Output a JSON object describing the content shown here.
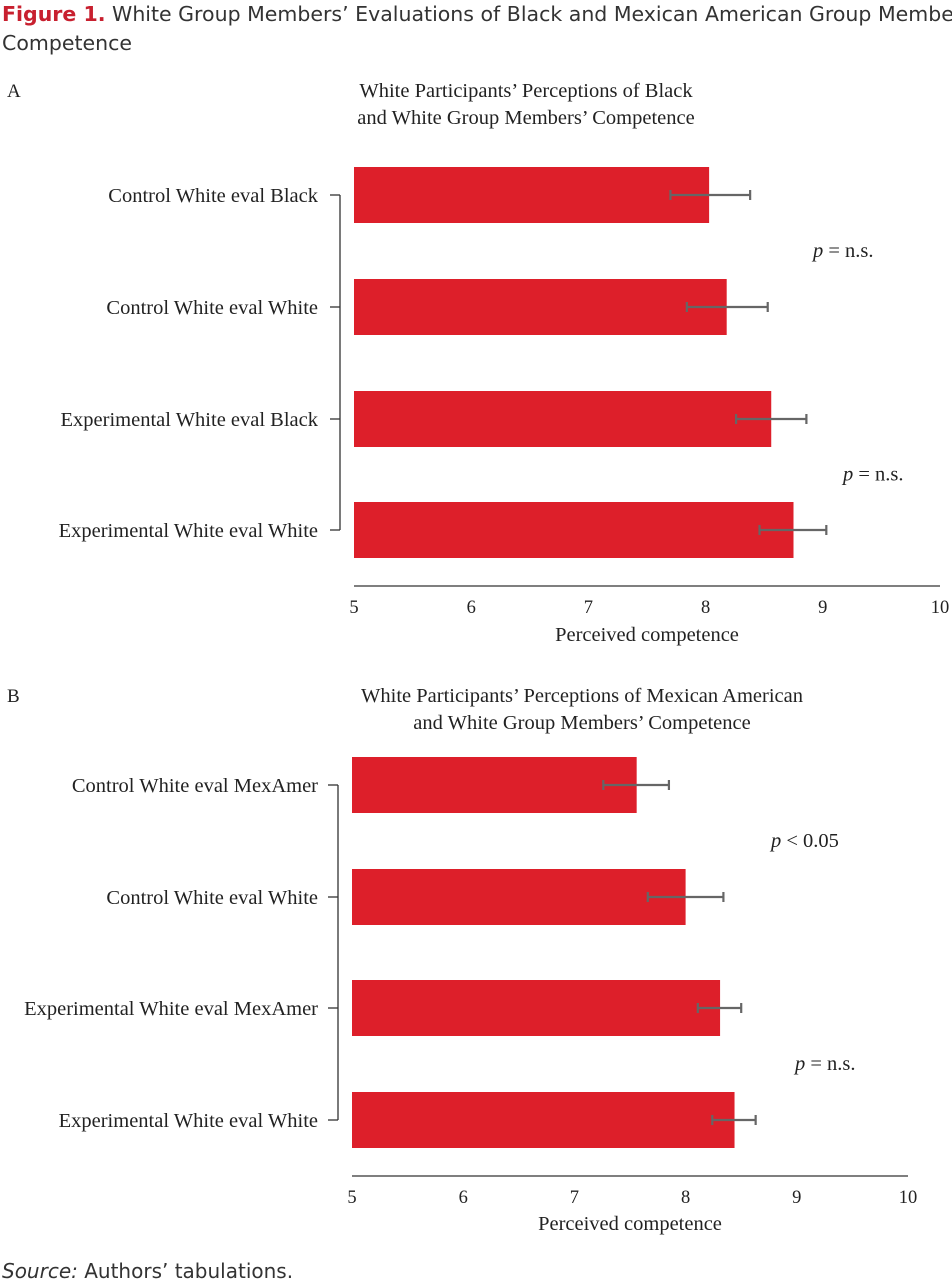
{
  "figure": {
    "label": "Figure 1.",
    "title_line1": "White Group Members’ Evaluations of Black and Mexican American Group Members’",
    "title_line2": "Competence"
  },
  "source": {
    "label": "Source:",
    "text": "Authors’ tabulations."
  },
  "colors": {
    "bar": "#dd1f2a",
    "error_bar": "#666666",
    "axis": "#333333",
    "title_accent": "#c8202f"
  },
  "chart_data": [
    {
      "type": "bar",
      "orientation": "horizontal",
      "panel_label": "A",
      "title_lines": [
        "White Participants’ Perceptions of Black",
        "and White Group Members’ Competence"
      ],
      "categories": [
        "Control White eval Black",
        "Control White eval White",
        "Experimental White eval Black",
        "Experimental White eval White"
      ],
      "values": [
        8.03,
        8.18,
        8.56,
        8.75
      ],
      "error_low": [
        7.7,
        7.84,
        8.26,
        8.46
      ],
      "error_high": [
        8.38,
        8.53,
        8.86,
        9.03
      ],
      "xlabel": "Perceived competence",
      "xlim": [
        5,
        10
      ],
      "xticks": [
        5,
        6,
        7,
        8,
        9,
        10
      ],
      "annotations": [
        {
          "italic": "p",
          "text": " = n.s.",
          "between": [
            0,
            1
          ]
        },
        {
          "italic": "p",
          "text": " = n.s.",
          "between": [
            2,
            3
          ]
        }
      ]
    },
    {
      "type": "bar",
      "orientation": "horizontal",
      "panel_label": "B",
      "title_lines": [
        "White Participants’ Perceptions of Mexican American",
        "and White Group Members’ Competence"
      ],
      "categories": [
        "Control White eval MexAmer",
        "Control White eval White",
        "Experimental White eval MexAmer",
        "Experimental White eval White"
      ],
      "values": [
        7.56,
        8.0,
        8.31,
        8.44
      ],
      "error_low": [
        7.26,
        7.66,
        8.11,
        8.24
      ],
      "error_high": [
        7.85,
        8.34,
        8.5,
        8.63
      ],
      "xlabel": "Perceived competence",
      "xlim": [
        5,
        10
      ],
      "xticks": [
        5,
        6,
        7,
        8,
        9,
        10
      ],
      "annotations": [
        {
          "italic": "p",
          "text": " < 0.05",
          "between": [
            0,
            1
          ]
        },
        {
          "italic": "p",
          "text": " = n.s.",
          "between": [
            2,
            3
          ]
        }
      ]
    }
  ]
}
